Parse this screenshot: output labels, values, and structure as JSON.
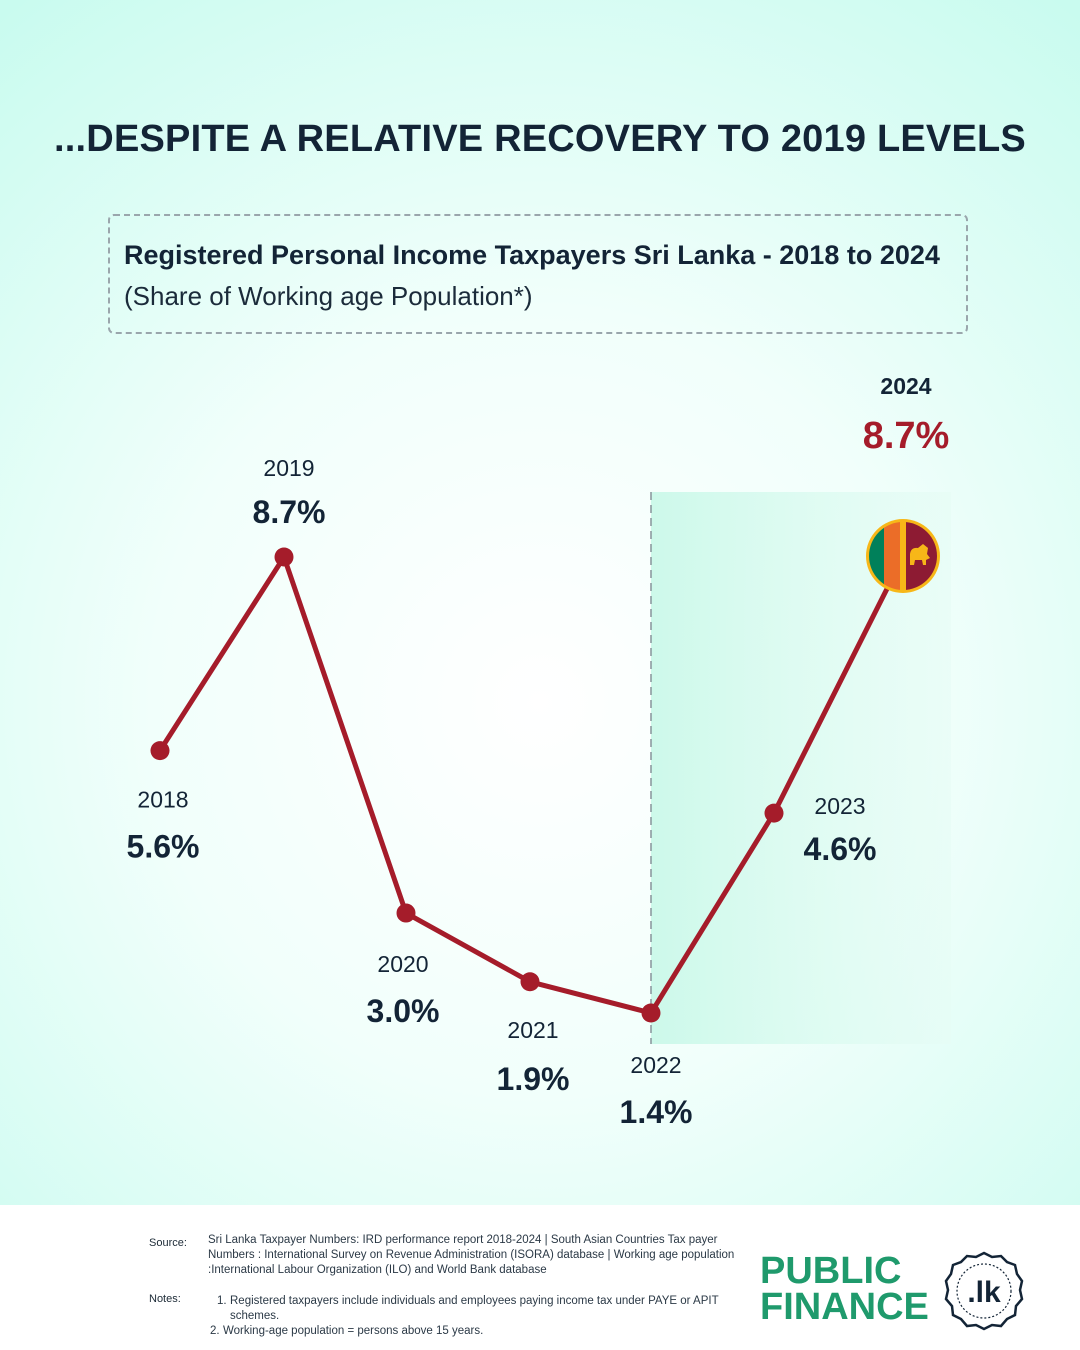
{
  "headline": "...DESPITE A RELATIVE RECOVERY TO 2019 LEVELS",
  "colors": {
    "line": "#a51c2a",
    "label_dark": "#132436",
    "label_highlight": "#a51c2a",
    "shade": "#d8fbf1",
    "brand_green": "#1f9a6c"
  },
  "chart_data": {
    "type": "line",
    "title": "Registered Personal Income Taxpayers Sri Lanka - 2018 to 2024",
    "subtitle": "(Share of Working age Population*)",
    "categories": [
      "2018",
      "2019",
      "2020",
      "2021",
      "2022",
      "2023",
      "2024"
    ],
    "series": [
      {
        "values": [
          5.6,
          8.7,
          3.0,
          1.9,
          1.4,
          4.6,
          8.7
        ]
      }
    ],
    "value_labels": [
      "5.6%",
      "8.7%",
      "3.0%",
      "1.9%",
      "1.4%",
      "4.6%",
      "8.7%"
    ],
    "highlight_index": 6,
    "shaded_period": [
      "2022",
      "2024"
    ],
    "grid": false,
    "marker_icon": "sri-lanka-flag-icon"
  },
  "footer": {
    "source_label": "Source:",
    "source_text": "Sri Lanka Taxpayer Numbers: IRD performance report 2018-2024 | South Asian Countries Tax payer Numbers : International Survey on Revenue Administration (ISORA) database | Working age population :International Labour Organization (ILO) and World Bank database",
    "notes_label": "Notes:",
    "notes": [
      {
        "num": "1.",
        "text": "Registered taxpayers include individuals and employees paying income tax under PAYE or APIT schemes."
      },
      {
        "num": "2.",
        "text": "Working-age population = persons above 15 years."
      }
    ]
  },
  "logo": {
    "line1": "PUBLIC",
    "line2": "FINANCE",
    "badge": ".lk"
  }
}
